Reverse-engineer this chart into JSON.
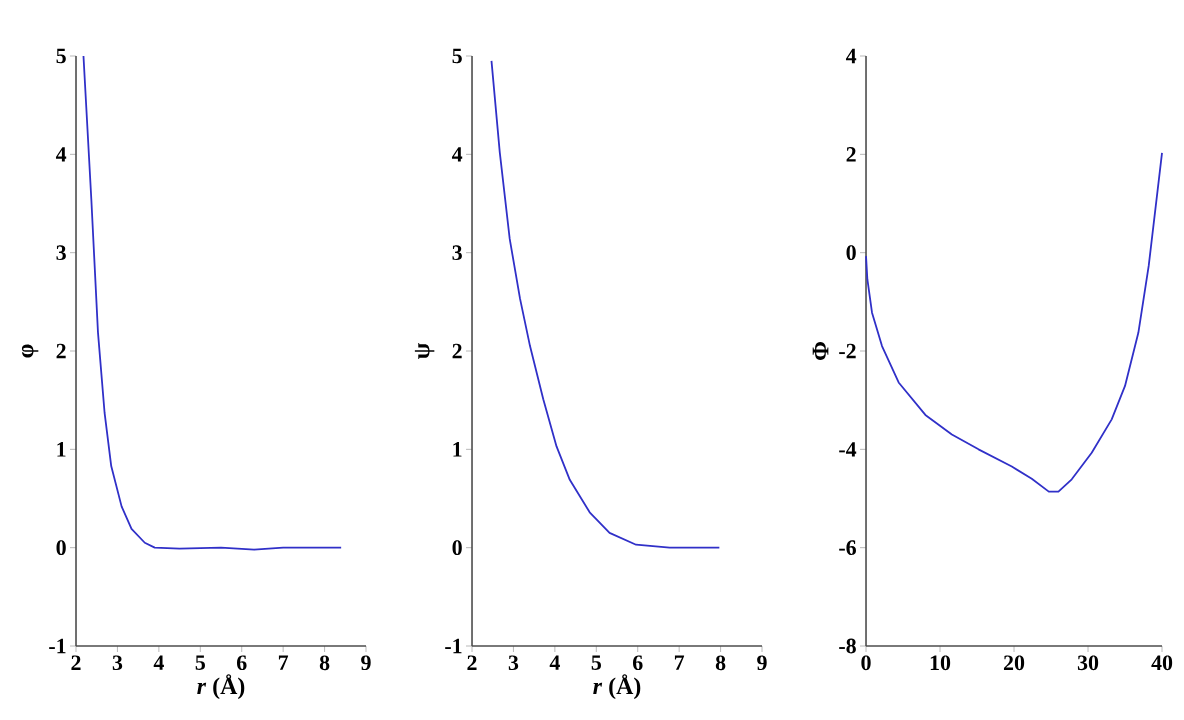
{
  "chart_data": [
    {
      "type": "line",
      "xlabel": "*r* (Å)",
      "ylabel": "φ",
      "xlim": [
        2,
        9
      ],
      "ylim": [
        -1,
        5
      ],
      "xticks": [
        2,
        3,
        4,
        5,
        6,
        7,
        8,
        9
      ],
      "yticks": [
        -1,
        0,
        1,
        2,
        3,
        4,
        5
      ],
      "series": [
        {
          "color": "#3030c8",
          "x": [
            2.18,
            2.37,
            2.53,
            2.69,
            2.85,
            3.1,
            3.34,
            3.66,
            3.9,
            4.5,
            5.5,
            6.3,
            7.0,
            8.0,
            8.4
          ],
          "values": [
            5,
            3.54,
            2.19,
            1.37,
            0.83,
            0.42,
            0.19,
            0.05,
            0.0,
            -0.01,
            0.0,
            -0.02,
            0.0,
            0.0,
            0.0
          ]
        }
      ]
    },
    {
      "type": "line",
      "xlabel": "*r* (Å)",
      "ylabel": "ψ",
      "xlim": [
        2,
        9
      ],
      "ylim": [
        -1,
        5
      ],
      "xticks": [
        2,
        3,
        4,
        5,
        6,
        7,
        8,
        9
      ],
      "yticks": [
        -1,
        0,
        1,
        2,
        3,
        4,
        5
      ],
      "series": [
        {
          "color": "#3030c8",
          "x": [
            2.47,
            2.67,
            2.91,
            3.16,
            3.4,
            3.72,
            4.04,
            4.36,
            4.84,
            5.32,
            5.96,
            6.77,
            7.97
          ],
          "values": [
            4.95,
            4.02,
            3.14,
            2.53,
            2.05,
            1.51,
            1.03,
            0.69,
            0.36,
            0.15,
            0.03,
            0.0,
            0.0
          ]
        }
      ]
    },
    {
      "type": "line",
      "ylabel": "Φ",
      "xlim": [
        0,
        40
      ],
      "ylim": [
        -8,
        4
      ],
      "xticks": [
        0,
        10,
        20,
        30,
        40
      ],
      "yticks": [
        -8,
        -6,
        -4,
        -2,
        0,
        2,
        4
      ],
      "series": [
        {
          "color": "#3030c8",
          "x": [
            0,
            0.18,
            0.81,
            2.16,
            4.41,
            8.02,
            11.6,
            15.2,
            19.7,
            22.4,
            24.7,
            26.0,
            27.8,
            30.5,
            33.2,
            35.0,
            36.8,
            38.2,
            40
          ],
          "values": [
            -0.07,
            -0.54,
            -1.22,
            -1.9,
            -2.64,
            -3.3,
            -3.7,
            -4.0,
            -4.35,
            -4.6,
            -4.86,
            -4.86,
            -4.61,
            -4.07,
            -3.39,
            -2.71,
            -1.63,
            -0.27,
            2.03
          ]
        }
      ]
    }
  ]
}
